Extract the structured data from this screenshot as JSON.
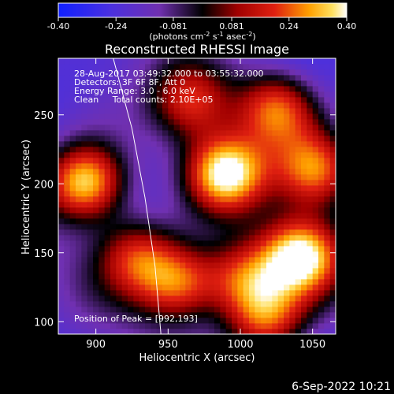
{
  "chart_data": {
    "type": "heatmap",
    "title": "Reconstructed RHESSI Image",
    "xlabel": "Heliocentric X (arcsec)",
    "ylabel": "Heliocentric Y (arcsec)",
    "xlim": [
      874,
      1066
    ],
    "ylim": [
      91,
      291
    ],
    "x_ticks": [
      900,
      950,
      1000,
      1050
    ],
    "y_ticks": [
      100,
      150,
      200,
      250
    ],
    "colorbar": {
      "range": [
        -0.4,
        0.4
      ],
      "tick_values": [
        -0.4,
        -0.24,
        -0.081,
        0.081,
        0.24,
        0.4
      ],
      "tick_labels": [
        "-0.40",
        "-0.24",
        "-0.081",
        "0.081",
        "0.24",
        "0.40"
      ],
      "units_label_parts": [
        "(photons cm",
        "-2",
        " s",
        "-1",
        " asec",
        "-2",
        ")"
      ]
    },
    "info_lines": [
      "28-Aug-2017 03:49:32.000 to 03:55:32.000",
      "Detectors: 3F 6F 8F, Att 0",
      "Energy Range: 3.0 - 6.0 keV",
      "Clean     Total counts: 2.10E+05"
    ],
    "peak_label": "Position of Peak = [992,193]",
    "peak_position": [
      992,
      193
    ],
    "sources": [
      {
        "x": 893,
        "y": 201,
        "amplitude": 0.4
      },
      {
        "x": 990,
        "y": 208,
        "amplitude": 0.4
      },
      {
        "x": 1042,
        "y": 148,
        "amplitude": 0.4
      },
      {
        "x": 1052,
        "y": 210,
        "amplitude": 0.26
      },
      {
        "x": 1025,
        "y": 255,
        "amplitude": 0.24
      },
      {
        "x": 966,
        "y": 260,
        "amplitude": 0.16
      },
      {
        "x": 958,
        "y": 128,
        "amplitude": 0.24
      },
      {
        "x": 928,
        "y": 148,
        "amplitude": 0.16
      },
      {
        "x": 1018,
        "y": 102,
        "amplitude": 0.22
      },
      {
        "x": 1002,
        "y": 132,
        "amplitude": 0.18
      }
    ],
    "limb_curve": [
      [
        912,
        291
      ],
      [
        925,
        240
      ],
      [
        934,
        190
      ],
      [
        941,
        140
      ],
      [
        945,
        91
      ]
    ],
    "colors": {
      "negative_end": "#1020ff",
      "mid_negative": "#7030b0",
      "zero": "#000000",
      "mid_positive": "#d01010",
      "high_positive": "#ffb000",
      "max": "#ffffff"
    }
  },
  "footer": {
    "date_stamp": "6-Sep-2022 10:21"
  }
}
